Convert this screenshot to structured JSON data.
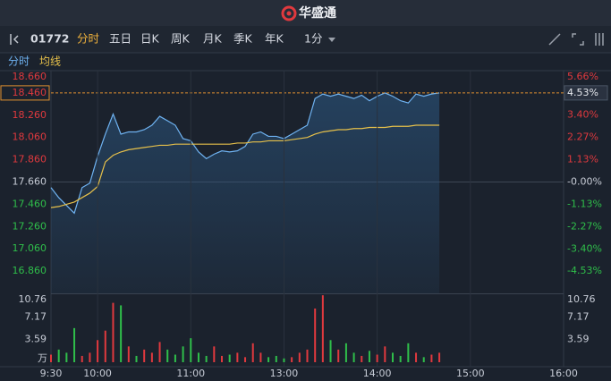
{
  "header": {
    "logo": "华盛通"
  },
  "toolbar": {
    "symbol": "01772",
    "tabs": [
      "分时",
      "五日",
      "日K",
      "周K",
      "月K",
      "季K",
      "年K"
    ],
    "interval": "1分"
  },
  "chart_data": [
    {
      "type": "line",
      "x": [
        0,
        5,
        10,
        15,
        20,
        25,
        30,
        35,
        40,
        45,
        50,
        55,
        60,
        65,
        70,
        75,
        80,
        85,
        90,
        95,
        100,
        105,
        110,
        115,
        120,
        125,
        130,
        135,
        140,
        145,
        150,
        155,
        160,
        165,
        170,
        175,
        180,
        185,
        190,
        195,
        200,
        205,
        210,
        215,
        220,
        225,
        230,
        235,
        240,
        245,
        250
      ],
      "series": [
        {
          "name": "分时",
          "color": "#6fb3f2",
          "values": [
            17.61,
            17.52,
            17.45,
            17.38,
            17.61,
            17.65,
            17.89,
            18.09,
            18.27,
            18.09,
            18.11,
            18.11,
            18.13,
            18.17,
            18.25,
            18.21,
            18.17,
            18.05,
            18.03,
            17.93,
            17.87,
            17.91,
            17.94,
            17.93,
            17.94,
            17.98,
            18.09,
            18.11,
            18.07,
            18.07,
            18.05,
            18.09,
            18.13,
            18.17,
            18.41,
            18.45,
            18.43,
            18.45,
            18.43,
            18.41,
            18.44,
            18.39,
            18.43,
            18.46,
            18.43,
            18.39,
            18.37,
            18.45,
            18.43,
            18.45,
            18.46
          ]
        },
        {
          "name": "均线",
          "color": "#e6c04a",
          "values": [
            17.43,
            17.44,
            17.46,
            17.48,
            17.52,
            17.56,
            17.62,
            17.84,
            17.9,
            17.93,
            17.95,
            17.96,
            17.97,
            17.98,
            17.99,
            17.99,
            18.0,
            18.0,
            18.0,
            18.0,
            18.0,
            18.0,
            18.0,
            18.0,
            18.01,
            18.01,
            18.02,
            18.02,
            18.03,
            18.03,
            18.03,
            18.04,
            18.05,
            18.06,
            18.09,
            18.11,
            18.12,
            18.13,
            18.13,
            18.14,
            18.14,
            18.15,
            18.15,
            18.15,
            18.16,
            18.16,
            18.16,
            18.17,
            18.17,
            18.17,
            18.17
          ]
        }
      ],
      "xlim": [
        0,
        330
      ],
      "ylim": [
        16.66,
        18.66
      ],
      "yticks": [
        {
          "value": 18.66,
          "label": "18.660"
        },
        {
          "value": 18.46,
          "label": "18.460"
        },
        {
          "value": 18.26,
          "label": "18.260"
        },
        {
          "value": 18.06,
          "label": "18.060"
        },
        {
          "value": 17.86,
          "label": "17.860"
        },
        {
          "value": 17.66,
          "label": "17.660"
        },
        {
          "value": 17.46,
          "label": "17.460"
        },
        {
          "value": 17.26,
          "label": "17.260"
        },
        {
          "value": 17.06,
          "label": "17.060"
        },
        {
          "value": 16.86,
          "label": "16.860"
        }
      ],
      "y2lim": [
        -5.66,
        5.66
      ],
      "y2ticks": [
        {
          "value": 5.66,
          "label": "5.66%"
        },
        {
          "value": 4.53,
          "label": "4.53%"
        },
        {
          "value": 3.4,
          "label": "3.40%"
        },
        {
          "value": 2.27,
          "label": "2.27%"
        },
        {
          "value": 1.13,
          "label": "1.13%"
        },
        {
          "value": 0,
          "label": "-0.00%"
        },
        {
          "value": -1.13,
          "label": "-1.13%"
        },
        {
          "value": -2.27,
          "label": "-2.27%"
        },
        {
          "value": -3.4,
          "label": "-3.40%"
        },
        {
          "value": -4.53,
          "label": "-4.53%"
        }
      ],
      "current_price": 18.46
    },
    {
      "type": "bar",
      "x": [
        0,
        5,
        10,
        15,
        20,
        25,
        30,
        35,
        40,
        45,
        50,
        55,
        60,
        65,
        70,
        75,
        80,
        85,
        90,
        95,
        100,
        105,
        110,
        115,
        120,
        125,
        130,
        135,
        140,
        145,
        150,
        155,
        160,
        165,
        170,
        175,
        180,
        185,
        190,
        195,
        200,
        205,
        210,
        215,
        220,
        225,
        230,
        235,
        240,
        245,
        250
      ],
      "values": [
        1.2,
        2.0,
        1.5,
        5.4,
        1.0,
        1.5,
        3.5,
        5.0,
        9.4,
        9.0,
        2.5,
        1.0,
        2.0,
        1.5,
        3.2,
        2.0,
        1.2,
        2.5,
        3.8,
        1.5,
        1.0,
        2.5,
        1.0,
        1.2,
        1.5,
        0.8,
        3.0,
        1.5,
        0.8,
        1.0,
        0.6,
        0.8,
        1.5,
        2.0,
        8.5,
        10.6,
        3.5,
        2.0,
        3.0,
        1.5,
        1.0,
        1.8,
        1.2,
        2.5,
        1.5,
        1.0,
        3.0,
        1.5,
        0.8,
        1.2,
        1.5
      ],
      "colors": [
        "#e0393e",
        "#2fbf4a",
        "#2fbf4a",
        "#2fbf4a",
        "#e0393e",
        "#e0393e",
        "#e0393e",
        "#e0393e",
        "#e0393e",
        "#2fbf4a",
        "#e0393e",
        "#2fbf4a",
        "#e0393e",
        "#e0393e",
        "#e0393e",
        "#2fbf4a",
        "#2fbf4a",
        "#2fbf4a",
        "#2fbf4a",
        "#2fbf4a",
        "#2fbf4a",
        "#e0393e",
        "#e0393e",
        "#2fbf4a",
        "#e0393e",
        "#e0393e",
        "#e0393e",
        "#e0393e",
        "#2fbf4a",
        "#2fbf4a",
        "#2fbf4a",
        "#e0393e",
        "#e0393e",
        "#e0393e",
        "#e0393e",
        "#e0393e",
        "#2fbf4a",
        "#e0393e",
        "#2fbf4a",
        "#2fbf4a",
        "#e0393e",
        "#2fbf4a",
        "#e0393e",
        "#e0393e",
        "#2fbf4a",
        "#2fbf4a",
        "#2fbf4a",
        "#e0393e",
        "#2fbf4a",
        "#e0393e",
        "#e0393e"
      ],
      "xlim": [
        0,
        330
      ],
      "ylim": [
        0,
        10.76
      ],
      "yticks": [
        10.76,
        7.17,
        3.59
      ],
      "unit": "万",
      "xticks": [
        {
          "value": 0,
          "label": "9:30"
        },
        {
          "value": 30,
          "label": "10:00"
        },
        {
          "value": 90,
          "label": "11:00"
        },
        {
          "value": 150,
          "label": "13:00"
        },
        {
          "value": 210,
          "label": "14:00"
        },
        {
          "value": 270,
          "label": "15:00"
        },
        {
          "value": 330,
          "label": "16:00"
        }
      ]
    }
  ]
}
